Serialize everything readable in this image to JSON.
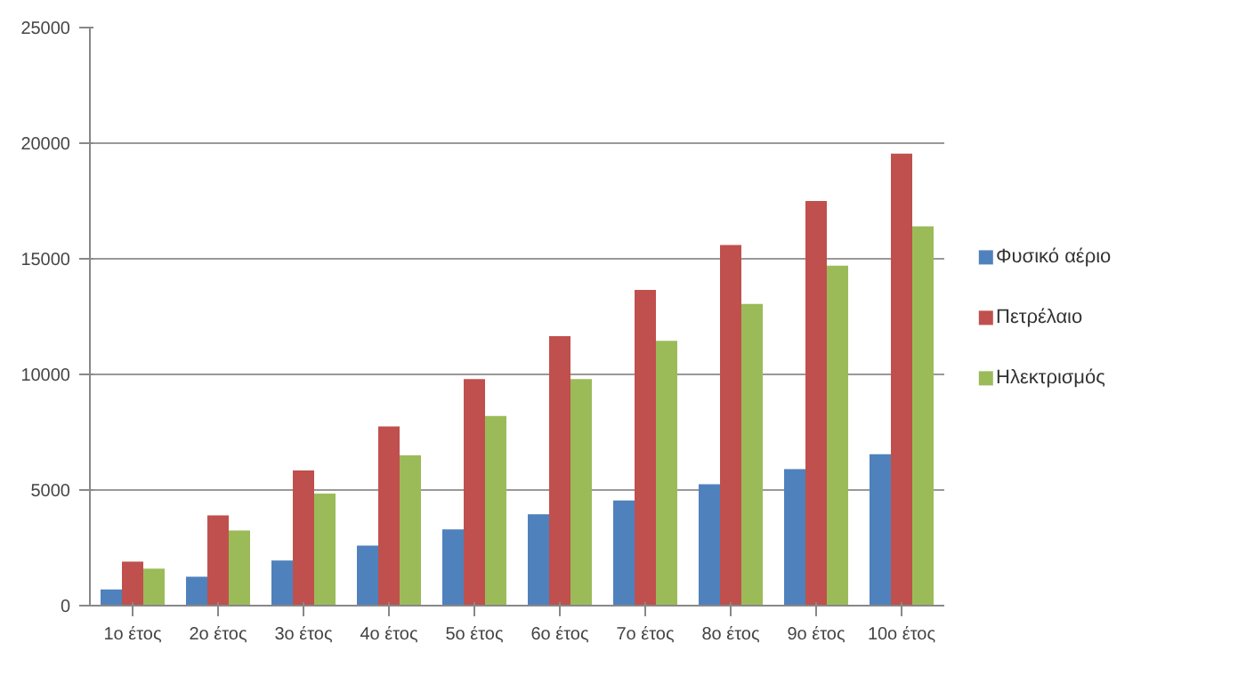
{
  "chart_data": {
    "type": "bar",
    "categories": [
      "1ο έτος",
      "2ο έτος",
      "3ο έτος",
      "4ο έτος",
      "5ο έτος",
      "6ο έτος",
      "7ο έτος",
      "8ο έτος",
      "9ο έτος",
      "10ο έτος"
    ],
    "series": [
      {
        "name": "Φυσικό αέριο",
        "color": "#4f81bd",
        "values": [
          700,
          1250,
          1950,
          2600,
          3300,
          3950,
          4550,
          5250,
          5900,
          6550
        ]
      },
      {
        "name": "Πετρέλαιο",
        "color": "#c0504d",
        "values": [
          1900,
          3900,
          5850,
          7750,
          9800,
          11650,
          13650,
          15600,
          17500,
          19550
        ]
      },
      {
        "name": "Ηλεκτρισμός",
        "color": "#9bbb59",
        "values": [
          1600,
          3250,
          4850,
          6500,
          8200,
          9800,
          11450,
          13050,
          14700,
          16400
        ]
      }
    ],
    "ylim": [
      0,
      25000
    ],
    "yticks": [
      0,
      5000,
      10000,
      15000,
      20000,
      25000
    ],
    "grid": "y",
    "legend": "right"
  }
}
